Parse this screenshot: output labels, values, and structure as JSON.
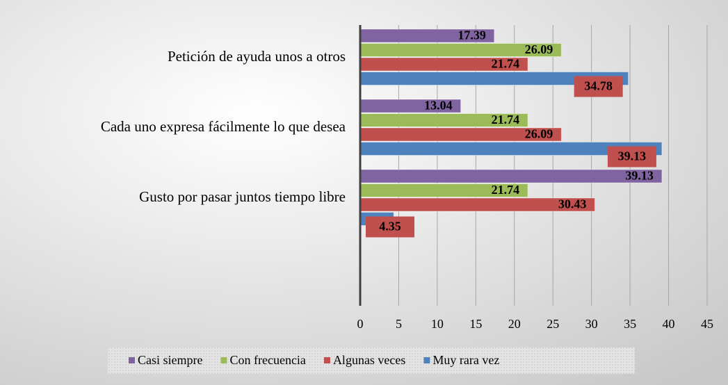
{
  "chart_data": {
    "type": "hbar",
    "categories": [
      "Petición de ayuda unos a otros",
      "Cada uno expresa fácilmente lo que desea",
      "Gusto por pasar juntos tiempo libre",
      null
    ],
    "series": [
      {
        "name": "Casi siempre",
        "color": "#8064a2",
        "values": [
          17.39,
          13.04,
          39.13,
          null
        ]
      },
      {
        "name": "Con frecuencia",
        "color": "#9bbb59",
        "values": [
          26.09,
          21.74,
          21.74,
          null
        ]
      },
      {
        "name": "Algunas veces",
        "color": "#c0504d",
        "values": [
          21.74,
          26.09,
          30.43,
          null
        ]
      },
      {
        "name": "Muy rara vez",
        "color": "#4f81bd",
        "values": [
          34.78,
          39.13,
          4.35,
          null
        ]
      }
    ],
    "xlim": [
      0,
      45
    ],
    "xticks": [
      0,
      5,
      10,
      15,
      20,
      25,
      30,
      35,
      40,
      45
    ],
    "grid": true,
    "legend": "bottom"
  }
}
